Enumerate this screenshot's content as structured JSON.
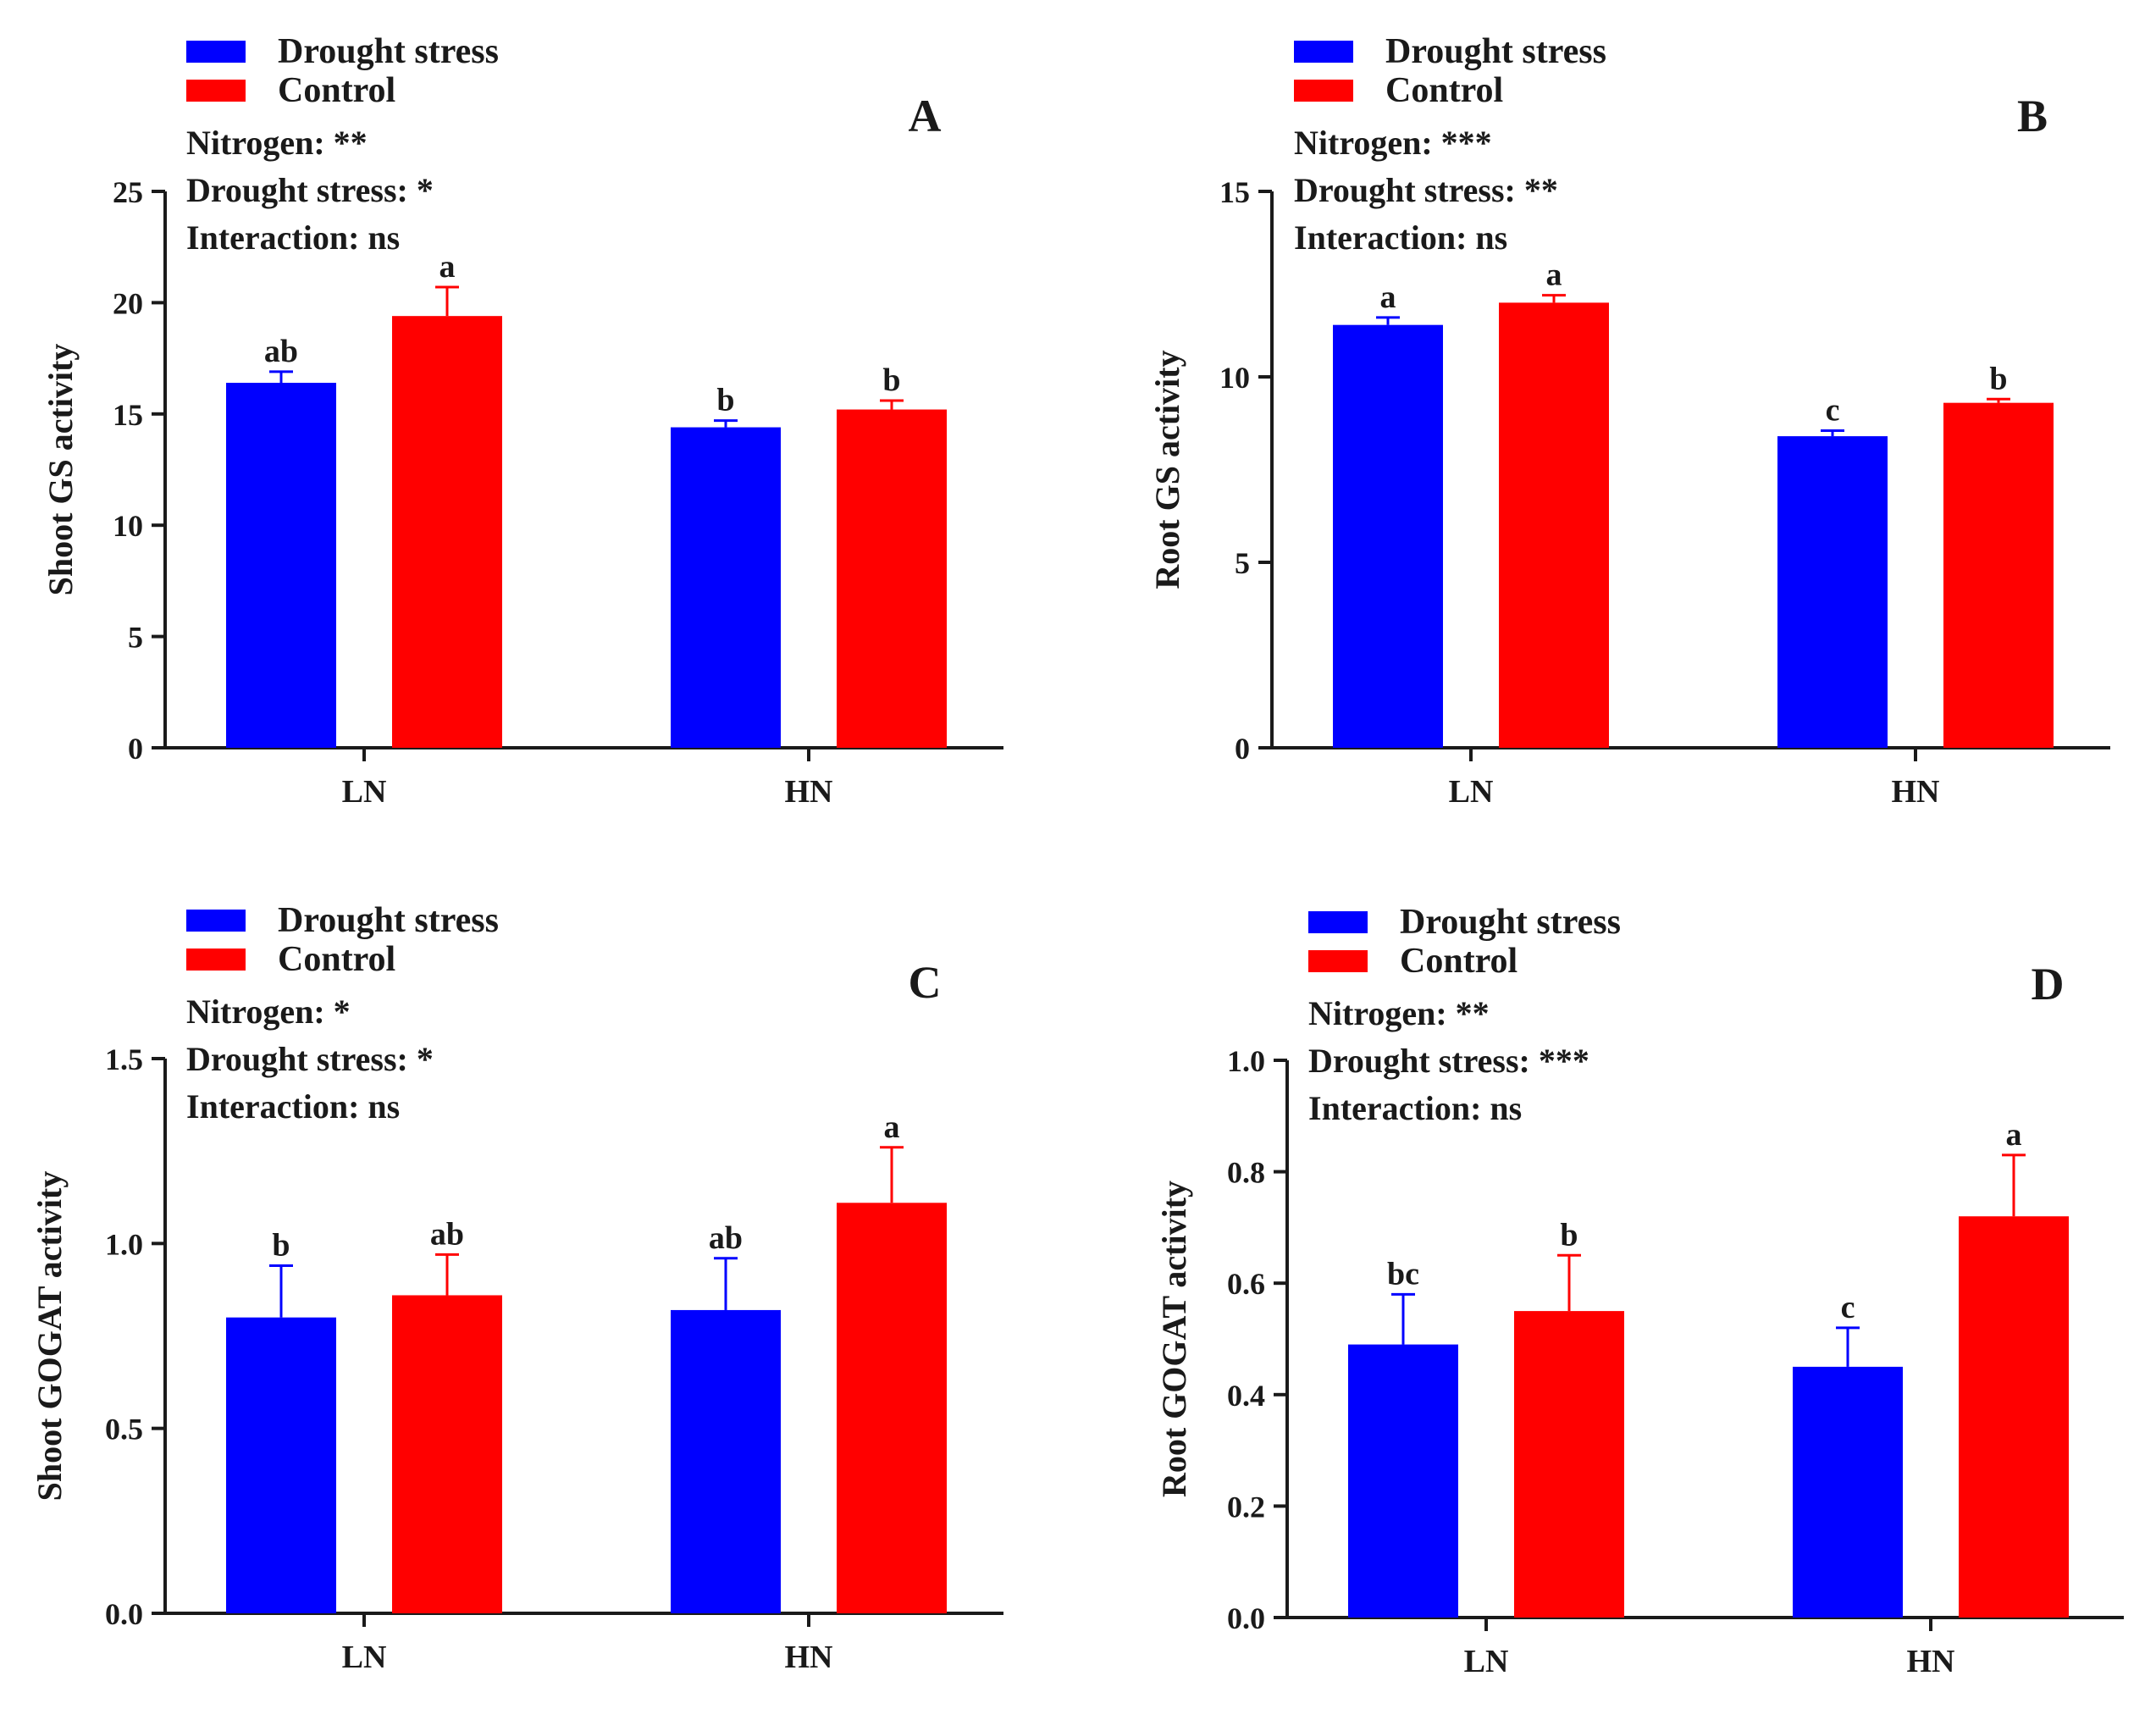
{
  "colors": {
    "drought": "#0000ff",
    "control": "#ff0000",
    "axis": "#1a1a1a"
  },
  "chart_data": [
    {
      "type": "bar",
      "panel_label": "A",
      "ylabel": "Shoot GS activity",
      "categories": [
        "LN",
        "HN"
      ],
      "ylim": [
        0,
        25
      ],
      "yticks": [
        0,
        5,
        10,
        15,
        20,
        25
      ],
      "ytick_labels": [
        "0",
        "5",
        "10",
        "15",
        "20",
        "25"
      ],
      "legend": [
        "Drought stress",
        "Control"
      ],
      "stats": [
        "Nitrogen: **",
        "Drought stress: *",
        "Interaction: ns"
      ],
      "series": [
        {
          "name": "Drought stress",
          "values": [
            16.4,
            14.4
          ],
          "errors": [
            0.5,
            0.3
          ],
          "letters": [
            "ab",
            "b"
          ]
        },
        {
          "name": "Control",
          "values": [
            19.4,
            15.2
          ],
          "errors": [
            1.3,
            0.4
          ],
          "letters": [
            "a",
            "b"
          ]
        }
      ]
    },
    {
      "type": "bar",
      "panel_label": "B",
      "ylabel": "Root GS activity",
      "categories": [
        "LN",
        "HN"
      ],
      "ylim": [
        0,
        15
      ],
      "yticks": [
        0,
        5,
        10,
        15
      ],
      "ytick_labels": [
        "0",
        "5",
        "10",
        "15"
      ],
      "legend": [
        "Drought stress",
        "Control"
      ],
      "stats": [
        "Nitrogen: ***",
        "Drought stress: **",
        "Interaction: ns"
      ],
      "series": [
        {
          "name": "Drought stress",
          "values": [
            11.4,
            8.4
          ],
          "errors": [
            0.2,
            0.15
          ],
          "letters": [
            "a",
            "c"
          ]
        },
        {
          "name": "Control",
          "values": [
            12.0,
            9.3
          ],
          "errors": [
            0.2,
            0.1
          ],
          "letters": [
            "a",
            "b"
          ]
        }
      ]
    },
    {
      "type": "bar",
      "panel_label": "C",
      "ylabel": "Shoot GOGAT activity",
      "categories": [
        "LN",
        "HN"
      ],
      "ylim": [
        0,
        1.5
      ],
      "yticks": [
        0,
        0.5,
        1.0,
        1.5
      ],
      "ytick_labels": [
        "0.0",
        "0.5",
        "1.0",
        "1.5"
      ],
      "legend": [
        "Drought stress",
        "Control"
      ],
      "stats": [
        "Nitrogen: *",
        "Drought stress: *",
        "Interaction: ns"
      ],
      "series": [
        {
          "name": "Drought stress",
          "values": [
            0.8,
            0.82
          ],
          "errors": [
            0.14,
            0.14
          ],
          "letters": [
            "b",
            "ab"
          ]
        },
        {
          "name": "Control",
          "values": [
            0.86,
            1.11
          ],
          "errors": [
            0.11,
            0.15
          ],
          "letters": [
            "ab",
            "a"
          ]
        }
      ]
    },
    {
      "type": "bar",
      "panel_label": "D",
      "ylabel": "Root GOGAT activity",
      "categories": [
        "LN",
        "HN"
      ],
      "ylim": [
        0,
        1.0
      ],
      "yticks": [
        0,
        0.2,
        0.4,
        0.6,
        0.8,
        1.0
      ],
      "ytick_labels": [
        "0.0",
        "0.2",
        "0.4",
        "0.6",
        "0.8",
        "1.0"
      ],
      "legend": [
        "Drought stress",
        "Control"
      ],
      "stats": [
        "Nitrogen: **",
        "Drought stress: ***",
        "Interaction: ns"
      ],
      "series": [
        {
          "name": "Drought stress",
          "values": [
            0.49,
            0.45
          ],
          "errors": [
            0.09,
            0.07
          ],
          "letters": [
            "bc",
            "c"
          ]
        },
        {
          "name": "Control",
          "values": [
            0.55,
            0.72
          ],
          "errors": [
            0.1,
            0.11
          ],
          "letters": [
            "b",
            "a"
          ]
        }
      ]
    }
  ]
}
